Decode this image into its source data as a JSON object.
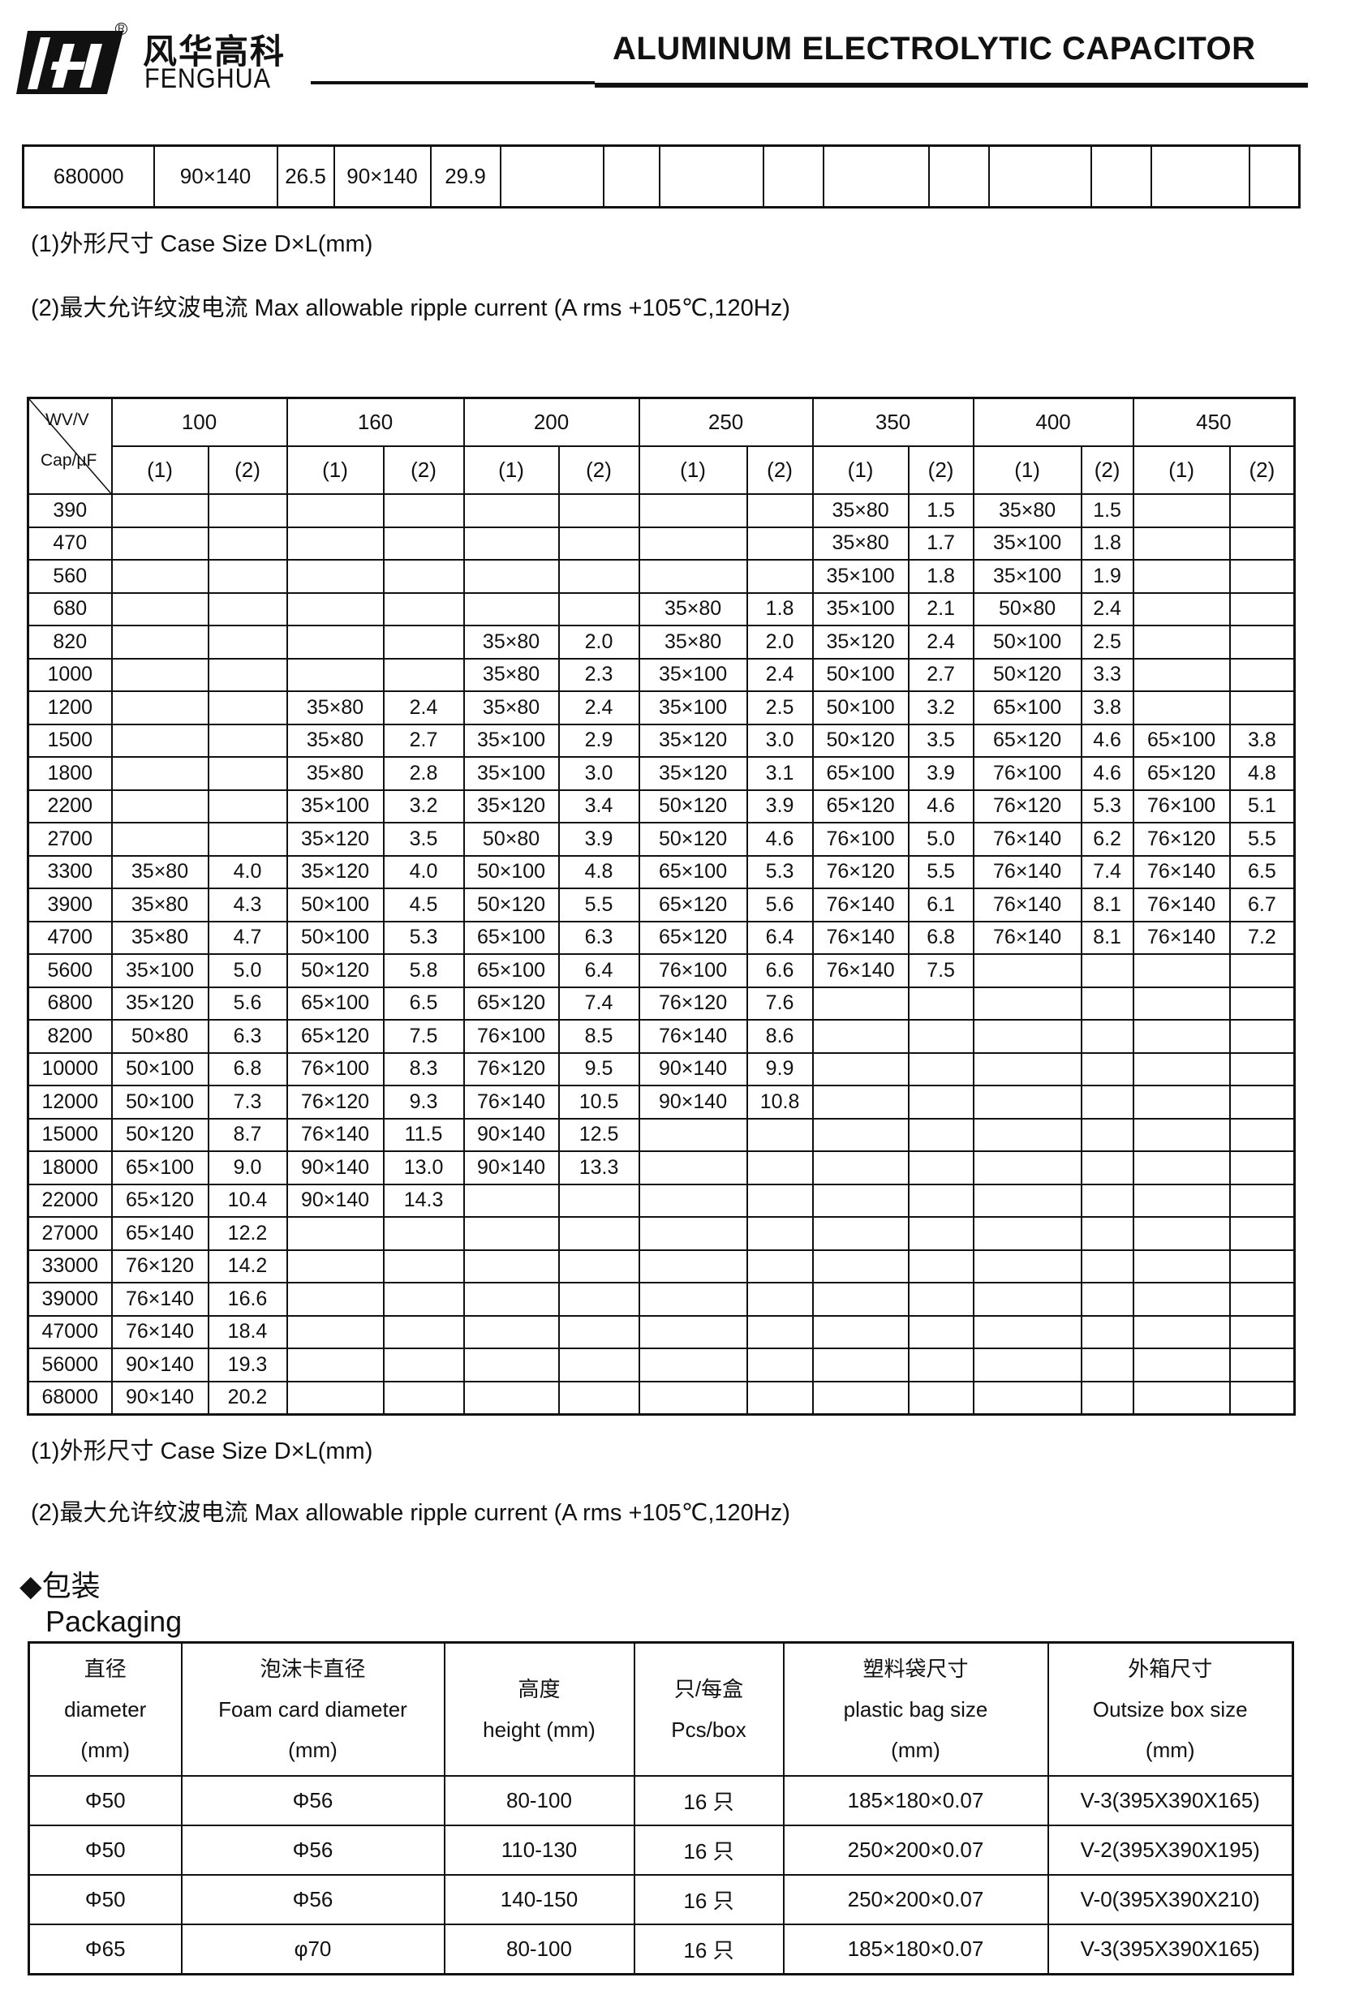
{
  "header": {
    "brand_cn": "风华高科",
    "brand_en": "FENGHUA",
    "registered_mark": "R",
    "title": "ALUMINUM ELECTROLYTIC CAPACITOR"
  },
  "top_table": {
    "cells": [
      "680000",
      "90×140",
      "26.5",
      "90×140",
      "29.9",
      "",
      "",
      "",
      "",
      "",
      "",
      "",
      "",
      "",
      ""
    ]
  },
  "notes_top": {
    "note1": "(1)外形尺寸    Case Size D×L(mm)",
    "note2": "(2)最大允许纹波电流  Max allowable ripple current    (A rms +105℃,120Hz)"
  },
  "main_table": {
    "corner_top": "WV/V",
    "corner_bottom": "Cap/μF",
    "voltages": [
      "100",
      "160",
      "200",
      "250",
      "350",
      "400",
      "450"
    ],
    "sub_headers": [
      "(1)",
      "(2)"
    ],
    "rows": [
      [
        "390",
        "",
        "",
        "",
        "",
        "",
        "",
        "",
        "",
        "35×80",
        "1.5",
        "35×80",
        "1.5",
        "",
        ""
      ],
      [
        "470",
        "",
        "",
        "",
        "",
        "",
        "",
        "",
        "",
        "35×80",
        "1.7",
        "35×100",
        "1.8",
        "",
        ""
      ],
      [
        "560",
        "",
        "",
        "",
        "",
        "",
        "",
        "",
        "",
        "35×100",
        "1.8",
        "35×100",
        "1.9",
        "",
        ""
      ],
      [
        "680",
        "",
        "",
        "",
        "",
        "",
        "",
        "35×80",
        "1.8",
        "35×100",
        "2.1",
        "50×80",
        "2.4",
        "",
        ""
      ],
      [
        "820",
        "",
        "",
        "",
        "",
        "35×80",
        "2.0",
        "35×80",
        "2.0",
        "35×120",
        "2.4",
        "50×100",
        "2.5",
        "",
        ""
      ],
      [
        "1000",
        "",
        "",
        "",
        "",
        "35×80",
        "2.3",
        "35×100",
        "2.4",
        "50×100",
        "2.7",
        "50×120",
        "3.3",
        "",
        ""
      ],
      [
        "1200",
        "",
        "",
        "35×80",
        "2.4",
        "35×80",
        "2.4",
        "35×100",
        "2.5",
        "50×100",
        "3.2",
        "65×100",
        "3.8",
        "",
        ""
      ],
      [
        "1500",
        "",
        "",
        "35×80",
        "2.7",
        "35×100",
        "2.9",
        "35×120",
        "3.0",
        "50×120",
        "3.5",
        "65×120",
        "4.6",
        "65×100",
        "3.8"
      ],
      [
        "1800",
        "",
        "",
        "35×80",
        "2.8",
        "35×100",
        "3.0",
        "35×120",
        "3.1",
        "65×100",
        "3.9",
        "76×100",
        "4.6",
        "65×120",
        "4.8"
      ],
      [
        "2200",
        "",
        "",
        "35×100",
        "3.2",
        "35×120",
        "3.4",
        "50×120",
        "3.9",
        "65×120",
        "4.6",
        "76×120",
        "5.3",
        "76×100",
        "5.1"
      ],
      [
        "2700",
        "",
        "",
        "35×120",
        "3.5",
        "50×80",
        "3.9",
        "50×120",
        "4.6",
        "76×100",
        "5.0",
        "76×140",
        "6.2",
        "76×120",
        "5.5"
      ],
      [
        "3300",
        "35×80",
        "4.0",
        "35×120",
        "4.0",
        "50×100",
        "4.8",
        "65×100",
        "5.3",
        "76×120",
        "5.5",
        "76×140",
        "7.4",
        "76×140",
        "6.5"
      ],
      [
        "3900",
        "35×80",
        "4.3",
        "50×100",
        "4.5",
        "50×120",
        "5.5",
        "65×120",
        "5.6",
        "76×140",
        "6.1",
        "76×140",
        "8.1",
        "76×140",
        "6.7"
      ],
      [
        "4700",
        "35×80",
        "4.7",
        "50×100",
        "5.3",
        "65×100",
        "6.3",
        "65×120",
        "6.4",
        "76×140",
        "6.8",
        "76×140",
        "8.1",
        "76×140",
        "7.2"
      ],
      [
        "5600",
        "35×100",
        "5.0",
        "50×120",
        "5.8",
        "65×100",
        "6.4",
        "76×100",
        "6.6",
        "76×140",
        "7.5",
        "",
        "",
        "",
        ""
      ],
      [
        "6800",
        "35×120",
        "5.6",
        "65×100",
        "6.5",
        "65×120",
        "7.4",
        "76×120",
        "7.6",
        "",
        "",
        "",
        "",
        "",
        ""
      ],
      [
        "8200",
        "50×80",
        "6.3",
        "65×120",
        "7.5",
        "76×100",
        "8.5",
        "76×140",
        "8.6",
        "",
        "",
        "",
        "",
        "",
        ""
      ],
      [
        "10000",
        "50×100",
        "6.8",
        "76×100",
        "8.3",
        "76×120",
        "9.5",
        "90×140",
        "9.9",
        "",
        "",
        "",
        "",
        "",
        ""
      ],
      [
        "12000",
        "50×100",
        "7.3",
        "76×120",
        "9.3",
        "76×140",
        "10.5",
        "90×140",
        "10.8",
        "",
        "",
        "",
        "",
        "",
        ""
      ],
      [
        "15000",
        "50×120",
        "8.7",
        "76×140",
        "11.5",
        "90×140",
        "12.5",
        "",
        "",
        "",
        "",
        "",
        "",
        "",
        ""
      ],
      [
        "18000",
        "65×100",
        "9.0",
        "90×140",
        "13.0",
        "90×140",
        "13.3",
        "",
        "",
        "",
        "",
        "",
        "",
        "",
        ""
      ],
      [
        "22000",
        "65×120",
        "10.4",
        "90×140",
        "14.3",
        "",
        "",
        "",
        "",
        "",
        "",
        "",
        "",
        "",
        ""
      ],
      [
        "27000",
        "65×140",
        "12.2",
        "",
        "",
        "",
        "",
        "",
        "",
        "",
        "",
        "",
        "",
        "",
        ""
      ],
      [
        "33000",
        "76×120",
        "14.2",
        "",
        "",
        "",
        "",
        "",
        "",
        "",
        "",
        "",
        "",
        "",
        ""
      ],
      [
        "39000",
        "76×140",
        "16.6",
        "",
        "",
        "",
        "",
        "",
        "",
        "",
        "",
        "",
        "",
        "",
        ""
      ],
      [
        "47000",
        "76×140",
        "18.4",
        "",
        "",
        "",
        "",
        "",
        "",
        "",
        "",
        "",
        "",
        "",
        ""
      ],
      [
        "56000",
        "90×140",
        "19.3",
        "",
        "",
        "",
        "",
        "",
        "",
        "",
        "",
        "",
        "",
        "",
        ""
      ],
      [
        "68000",
        "90×140",
        "20.2",
        "",
        "",
        "",
        "",
        "",
        "",
        "",
        "",
        "",
        "",
        "",
        ""
      ]
    ]
  },
  "notes_bottom": {
    "note1": "(1)外形尺寸    Case Size D×L(mm)",
    "note2": "(2)最大允许纹波电流  Max allowable ripple current    (A rms    +105℃,120Hz)"
  },
  "packaging": {
    "heading_cn": "◆包装",
    "heading_en": "Packaging",
    "headers": [
      [
        "直径",
        "diameter",
        "(mm)"
      ],
      [
        "泡沫卡直径",
        "Foam card diameter",
        "(mm)"
      ],
      [
        "高度",
        "height (mm)"
      ],
      [
        "只/每盒",
        "Pcs/box"
      ],
      [
        "塑料袋尺寸",
        "plastic bag size",
        "(mm)"
      ],
      [
        "外箱尺寸",
        "Outsize box size",
        "(mm)"
      ]
    ],
    "rows": [
      [
        "Φ50",
        "Φ56",
        "80-100",
        "16 只",
        "185×180×0.07",
        "V-3(395X390X165)"
      ],
      [
        "Φ50",
        "Φ56",
        "110-130",
        "16 只",
        "250×200×0.07",
        "V-2(395X390X195)"
      ],
      [
        "Φ50",
        "Φ56",
        "140-150",
        "16 只",
        "250×200×0.07",
        "V-0(395X390X210)"
      ],
      [
        "Φ65",
        "φ70",
        "80-100",
        "16 只",
        "185×180×0.07",
        "V-3(395X390X165)"
      ]
    ]
  }
}
